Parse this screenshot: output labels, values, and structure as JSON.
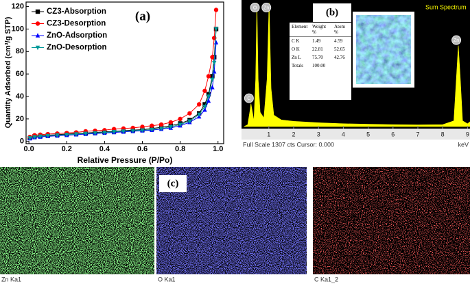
{
  "chart_data": [
    {
      "type": "line",
      "annotation": "(a)",
      "xlabel": "Relative Pressure (P/Po)",
      "ylabel": "Quantity Adsorbed (cm³/g STP)",
      "x": [
        0.005,
        0.03,
        0.06,
        0.1,
        0.15,
        0.2,
        0.25,
        0.3,
        0.35,
        0.4,
        0.45,
        0.5,
        0.55,
        0.6,
        0.65,
        0.7,
        0.75,
        0.8,
        0.85,
        0.9,
        0.93,
        0.95,
        0.97,
        0.98,
        0.99
      ],
      "series": [
        {
          "name": "CZ3-Absorption",
          "color": "#000000",
          "marker": "square",
          "values": [
            3,
            4.5,
            5,
            5.5,
            6,
            6.5,
            7,
            7.5,
            8,
            8.5,
            9,
            9.5,
            10,
            10.5,
            11.5,
            12.5,
            14,
            16,
            19,
            25,
            33,
            42,
            58,
            75,
            100
          ]
        },
        {
          "name": "CZ3-Desorption",
          "color": "#ff0000",
          "marker": "circle",
          "values": [
            4,
            5.5,
            6,
            6.5,
            7,
            7.5,
            8,
            9,
            9.5,
            10,
            11,
            11.5,
            12,
            13,
            14,
            15,
            17,
            20,
            25,
            33,
            45,
            58,
            75,
            92,
            117
          ]
        },
        {
          "name": "ZnO-Adsorption",
          "color": "#0000ff",
          "marker": "triangle-up",
          "values": [
            2.5,
            3.5,
            4,
            4.5,
            5,
            5.5,
            6,
            6.5,
            7,
            7.5,
            8,
            8.5,
            9,
            9.5,
            10,
            11,
            12,
            14,
            17,
            22,
            28,
            36,
            48,
            62,
            88
          ]
        },
        {
          "name": "ZnO-Desorption",
          "color": "#009999",
          "marker": "triangle-down",
          "values": [
            3,
            4,
            4.5,
            5,
            5.5,
            6,
            6.5,
            7,
            7.5,
            8,
            8.5,
            9,
            9.5,
            10,
            10.5,
            11.5,
            13,
            15,
            18,
            24,
            31,
            40,
            55,
            70,
            100
          ]
        }
      ],
      "xlim": [
        -0.015,
        1.03
      ],
      "ylim": [
        -2,
        124
      ],
      "xticks": [
        {
          "value": 0,
          "label": "0.0"
        },
        0.2,
        0.4,
        0.6,
        0.8,
        {
          "value": 1,
          "label": "1.0"
        }
      ],
      "yticks": [
        0,
        20,
        40,
        60,
        80,
        100,
        120
      ],
      "legend": "upper left"
    },
    {
      "type": "area",
      "title": "Sum Spectrum",
      "annotation": "(b)",
      "footer": "Full Scale 1307 cts Cursor: 0.000",
      "xlabel": "keV",
      "x": [
        0,
        0.15,
        0.25,
        0.28,
        0.32,
        0.4,
        0.47,
        0.52,
        0.57,
        0.65,
        0.8,
        0.93,
        1.01,
        1.09,
        1.2,
        1.5,
        2,
        3,
        4,
        5,
        6,
        7,
        8,
        8.45,
        8.55,
        8.63,
        8.71,
        8.8,
        9,
        9.1
      ],
      "values": [
        0,
        20,
        180,
        240,
        180,
        60,
        500,
        1300,
        500,
        150,
        90,
        500,
        1300,
        400,
        120,
        70,
        55,
        40,
        30,
        25,
        20,
        18,
        20,
        60,
        500,
        850,
        500,
        60,
        30,
        50
      ],
      "color": "#ffff00",
      "xlim": [
        -0.1,
        9.1
      ],
      "ylim": [
        0,
        1307
      ],
      "xticks": [
        1,
        2,
        3,
        4,
        5,
        6,
        7,
        8,
        9
      ],
      "peak_labels": [
        {
          "label": "C",
          "x": 0.2
        },
        {
          "label": "O",
          "x": 0.44
        },
        {
          "label": "Zn",
          "x": 0.9
        },
        {
          "label": "Zn",
          "x": 8.55
        }
      ],
      "table": {
        "header": [
          "Element",
          "Weight %",
          "Atom %"
        ],
        "rows": [
          [
            "C K",
            "1.49",
            "4.59"
          ],
          [
            "O K",
            "22.81",
            "52.65"
          ],
          [
            "Zn L",
            "75.70",
            "42.76"
          ],
          [
            "Totals",
            "100.00"
          ]
        ]
      }
    }
  ],
  "maps": {
    "annotation": "(c)",
    "panels": [
      "Zn Ka1",
      "O Ka1",
      "C Ka1_2"
    ]
  }
}
